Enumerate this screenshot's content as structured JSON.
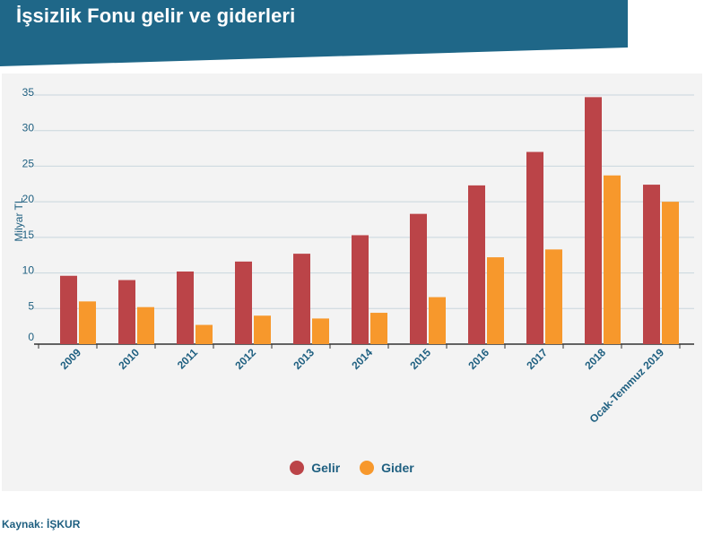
{
  "header": {
    "title": "İşsizlik Fonu gelir ve giderleri"
  },
  "colors": {
    "header_bg": "#1f6788",
    "gelir": "#bb4448",
    "gider": "#f7982c",
    "text": "#1e5f80",
    "grid": "#c9d6dd"
  },
  "source": "Kaynak: İŞKUR",
  "chart_data": {
    "type": "bar",
    "ylabel": "Milyar TL",
    "ylim": [
      0,
      35
    ],
    "yticks": [
      0,
      5,
      10,
      15,
      20,
      25,
      30,
      35
    ],
    "grid": true,
    "legend_position": "bottom",
    "categories": [
      "2009",
      "2010",
      "2011",
      "2012",
      "2013",
      "2014",
      "2015",
      "2016",
      "2017",
      "2018",
      "Ocak-Temmuz 2019"
    ],
    "series": [
      {
        "name": "Gelir",
        "color": "#bb4448",
        "values": [
          9.6,
          9.0,
          10.2,
          11.6,
          12.7,
          15.3,
          18.3,
          22.3,
          27.0,
          34.7,
          22.4
        ]
      },
      {
        "name": "Gider",
        "color": "#f7982c",
        "values": [
          6.0,
          5.2,
          2.7,
          4.0,
          3.6,
          4.4,
          6.6,
          12.2,
          13.3,
          23.7,
          20.0
        ]
      }
    ]
  }
}
